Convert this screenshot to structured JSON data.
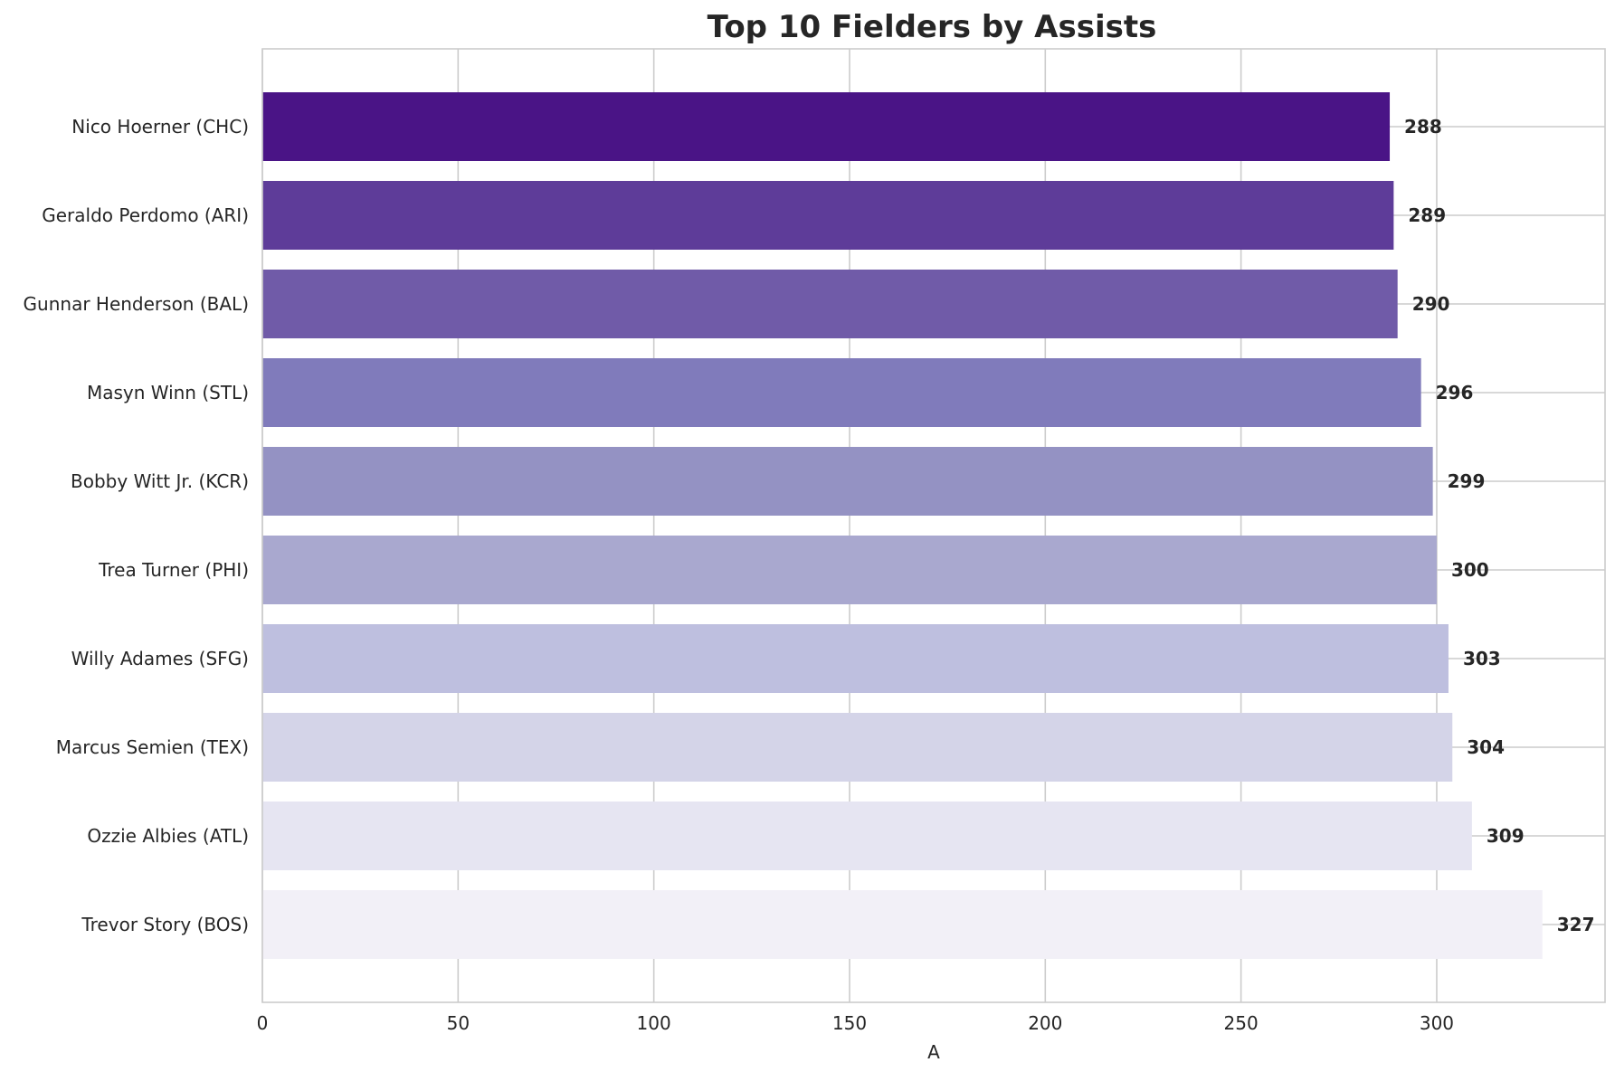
{
  "chart_data": {
    "type": "bar",
    "orientation": "horizontal",
    "title": "Top 10 Fielders by Assists",
    "xlabel": "A",
    "ylabel": "",
    "xlim": [
      0,
      343
    ],
    "xticks": [
      0,
      50,
      100,
      150,
      200,
      250,
      300
    ],
    "grid": true,
    "legend": "none",
    "categories": [
      "Nico Hoerner (CHC)",
      "Geraldo Perdomo (ARI)",
      "Gunnar Henderson (BAL)",
      "Masyn Winn (STL)",
      "Bobby Witt Jr. (KCR)",
      "Trea Turner (PHI)",
      "Willy Adames (SFG)",
      "Marcus Semien (TEX)",
      "Ozzie Albies (ATL)",
      "Trevor Story (BOS)"
    ],
    "values": [
      288,
      289,
      290,
      296,
      299,
      300,
      303,
      304,
      309,
      327
    ],
    "value_labels": [
      "288",
      "289",
      "290",
      "296",
      "299",
      "300",
      "303",
      "304",
      "309",
      "327"
    ],
    "colors": [
      "#4a1486",
      "#5e3c99",
      "#705ba8",
      "#807bbb",
      "#9492c3",
      "#a9a8cf",
      "#bebfdf",
      "#d4d4e8",
      "#e6e5f2",
      "#f2f0f7"
    ]
  }
}
